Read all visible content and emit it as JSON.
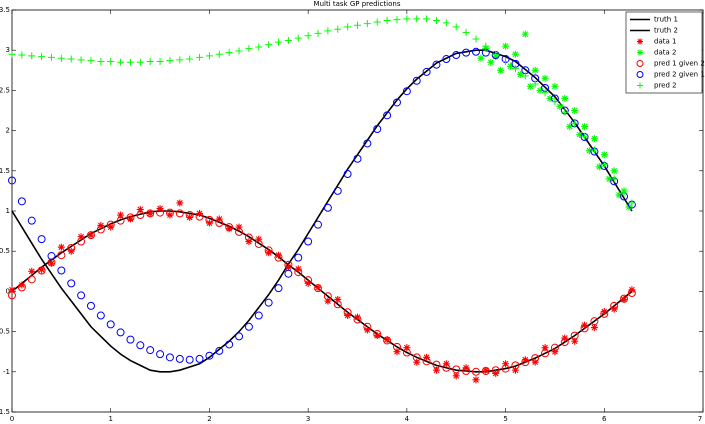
{
  "chart_data": {
    "type": "mixed",
    "title": "Multi task GP predictions",
    "xlim": [
      0,
      7
    ],
    "ylim": [
      -1.5,
      3.5
    ],
    "xticks": [
      0,
      1,
      2,
      3,
      4,
      5,
      6,
      7
    ],
    "yticks": [
      -1.5,
      -1,
      -0.5,
      0,
      0.5,
      1,
      1.5,
      2,
      2.5,
      3,
      3.5
    ],
    "legend": "northeast",
    "x": [
      0,
      0.1,
      0.2,
      0.3,
      0.4,
      0.5,
      0.6,
      0.7,
      0.8,
      0.9,
      1.0,
      1.1,
      1.2,
      1.3,
      1.4,
      1.5,
      1.6,
      1.7,
      1.8,
      1.9,
      2.0,
      2.1,
      2.2,
      2.3,
      2.4,
      2.5,
      2.6,
      2.7,
      2.8,
      2.9,
      3.0,
      3.1,
      3.2,
      3.3,
      3.4,
      3.5,
      3.6,
      3.7,
      3.8,
      3.9,
      4.0,
      4.1,
      4.2,
      4.3,
      4.4,
      4.5,
      4.6,
      4.7,
      4.8,
      4.9,
      5.0,
      5.1,
      5.2,
      5.3,
      5.4,
      5.5,
      5.6,
      5.7,
      5.8,
      5.9,
      6.0,
      6.1,
      6.2,
      6.28
    ],
    "series": [
      {
        "name": "truth 1",
        "color": "#000000",
        "style": "line",
        "values": [
          0,
          0.1,
          0.2,
          0.3,
          0.39,
          0.48,
          0.56,
          0.64,
          0.72,
          0.78,
          0.84,
          0.89,
          0.93,
          0.96,
          0.99,
          1.0,
          1.0,
          0.99,
          0.97,
          0.95,
          0.91,
          0.86,
          0.81,
          0.75,
          0.68,
          0.6,
          0.52,
          0.43,
          0.33,
          0.24,
          0.14,
          0.04,
          -0.06,
          -0.16,
          -0.26,
          -0.35,
          -0.44,
          -0.53,
          -0.61,
          -0.69,
          -0.76,
          -0.82,
          -0.87,
          -0.92,
          -0.95,
          -0.98,
          -0.99,
          -1.0,
          -1.0,
          -0.98,
          -0.96,
          -0.93,
          -0.88,
          -0.83,
          -0.77,
          -0.71,
          -0.63,
          -0.55,
          -0.46,
          -0.37,
          -0.28,
          -0.18,
          -0.08,
          0.0
        ]
      },
      {
        "name": "truth 2",
        "color": "#000000",
        "style": "line",
        "values": [
          1,
          0.8,
          0.6,
          0.4,
          0.22,
          0.04,
          -0.12,
          -0.28,
          -0.44,
          -0.56,
          -0.68,
          -0.78,
          -0.86,
          -0.92,
          -0.98,
          -1.0,
          -1.0,
          -0.98,
          -0.94,
          -0.9,
          -0.82,
          -0.72,
          -0.62,
          -0.5,
          -0.36,
          -0.2,
          -0.04,
          0.14,
          0.34,
          0.52,
          0.72,
          0.92,
          1.12,
          1.32,
          1.52,
          1.7,
          1.88,
          2.06,
          2.22,
          2.38,
          2.52,
          2.64,
          2.74,
          2.84,
          2.9,
          2.96,
          2.98,
          3.0,
          3.0,
          2.96,
          2.92,
          2.86,
          2.76,
          2.66,
          2.54,
          2.42,
          2.26,
          2.1,
          1.92,
          1.74,
          1.56,
          1.36,
          1.16,
          1.0
        ]
      },
      {
        "name": "data 1",
        "color": "#ff0000",
        "style": "star",
        "values": [
          0.02,
          0.08,
          0.25,
          0.27,
          0.35,
          0.55,
          0.5,
          0.68,
          0.7,
          0.82,
          0.8,
          0.95,
          0.9,
          1.02,
          0.97,
          1.03,
          0.95,
          1.1,
          0.92,
          0.97,
          0.85,
          0.9,
          0.78,
          0.8,
          0.62,
          0.65,
          0.48,
          0.45,
          0.3,
          0.28,
          0.1,
          0.05,
          -0.12,
          -0.1,
          -0.3,
          -0.32,
          -0.48,
          -0.55,
          -0.6,
          -0.75,
          -0.7,
          -0.88,
          -0.82,
          -0.98,
          -0.9,
          -1.05,
          -0.95,
          -1.1,
          -0.98,
          -1.02,
          -0.9,
          -0.98,
          -0.85,
          -0.88,
          -0.7,
          -0.75,
          -0.58,
          -0.62,
          -0.42,
          -0.45,
          -0.25,
          -0.22,
          -0.1,
          0.02
        ]
      },
      {
        "name": "data 2",
        "color": "#00ff00",
        "style": "star",
        "x": [
          4.75,
          4.8,
          4.85,
          4.9,
          4.95,
          5.0,
          5.05,
          5.1,
          5.15,
          5.2,
          5.25,
          5.3,
          5.35,
          5.4,
          5.45,
          5.5,
          5.55,
          5.6,
          5.65,
          5.7,
          5.75,
          5.8,
          5.85,
          5.9,
          5.95,
          6.0,
          6.05,
          6.1,
          6.15,
          6.2,
          6.25
        ],
        "values": [
          2.9,
          3.02,
          2.85,
          2.92,
          2.75,
          3.05,
          2.8,
          2.95,
          2.7,
          3.2,
          2.55,
          2.75,
          2.5,
          2.65,
          2.4,
          2.55,
          2.3,
          2.4,
          2.05,
          2.25,
          1.95,
          2.05,
          1.75,
          1.9,
          1.55,
          1.7,
          1.4,
          1.5,
          1.2,
          1.25,
          1.05
        ]
      },
      {
        "name": "pred 1 given 2",
        "color": "#ff0000",
        "style": "circle",
        "values": [
          -0.05,
          0.05,
          0.15,
          0.26,
          0.36,
          0.45,
          0.54,
          0.62,
          0.7,
          0.77,
          0.83,
          0.88,
          0.92,
          0.95,
          0.97,
          0.98,
          0.98,
          0.97,
          0.95,
          0.93,
          0.89,
          0.85,
          0.8,
          0.74,
          0.67,
          0.59,
          0.51,
          0.42,
          0.33,
          0.24,
          0.14,
          0.04,
          -0.06,
          -0.16,
          -0.26,
          -0.35,
          -0.44,
          -0.53,
          -0.61,
          -0.69,
          -0.76,
          -0.82,
          -0.87,
          -0.91,
          -0.95,
          -0.97,
          -0.99,
          -1.0,
          -0.99,
          -0.98,
          -0.96,
          -0.92,
          -0.88,
          -0.83,
          -0.77,
          -0.7,
          -0.63,
          -0.55,
          -0.46,
          -0.37,
          -0.28,
          -0.18,
          -0.09,
          -0.02
        ]
      },
      {
        "name": "pred 2 given 1",
        "color": "#0000ff",
        "style": "circle",
        "values": [
          1.38,
          1.12,
          0.88,
          0.65,
          0.44,
          0.26,
          0.1,
          -0.05,
          -0.18,
          -0.3,
          -0.41,
          -0.51,
          -0.6,
          -0.67,
          -0.73,
          -0.78,
          -0.82,
          -0.84,
          -0.85,
          -0.84,
          -0.8,
          -0.74,
          -0.66,
          -0.56,
          -0.44,
          -0.3,
          -0.14,
          0.04,
          0.22,
          0.42,
          0.62,
          0.83,
          1.04,
          1.25,
          1.46,
          1.65,
          1.84,
          2.02,
          2.19,
          2.35,
          2.49,
          2.62,
          2.73,
          2.82,
          2.89,
          2.94,
          2.97,
          2.98,
          2.97,
          2.94,
          2.89,
          2.83,
          2.75,
          2.65,
          2.53,
          2.4,
          2.25,
          2.09,
          1.92,
          1.74,
          1.56,
          1.37,
          1.18,
          1.08
        ]
      },
      {
        "name": "pred 2",
        "color": "#00ff00",
        "style": "plus",
        "values": [
          2.95,
          2.94,
          2.93,
          2.92,
          2.91,
          2.9,
          2.89,
          2.88,
          2.87,
          2.86,
          2.86,
          2.85,
          2.85,
          2.85,
          2.86,
          2.86,
          2.87,
          2.88,
          2.89,
          2.91,
          2.93,
          2.95,
          2.97,
          2.99,
          3.02,
          3.04,
          3.07,
          3.1,
          3.12,
          3.15,
          3.18,
          3.21,
          3.24,
          3.26,
          3.29,
          3.31,
          3.33,
          3.35,
          3.37,
          3.38,
          3.39,
          3.39,
          3.39,
          3.37,
          3.34,
          3.29,
          3.22,
          3.14,
          3.05,
          2.95,
          2.86,
          2.77,
          2.68,
          2.58,
          2.47,
          2.36,
          2.23,
          2.09,
          1.93,
          1.76,
          1.58,
          1.4,
          1.22,
          1.1
        ]
      }
    ]
  }
}
